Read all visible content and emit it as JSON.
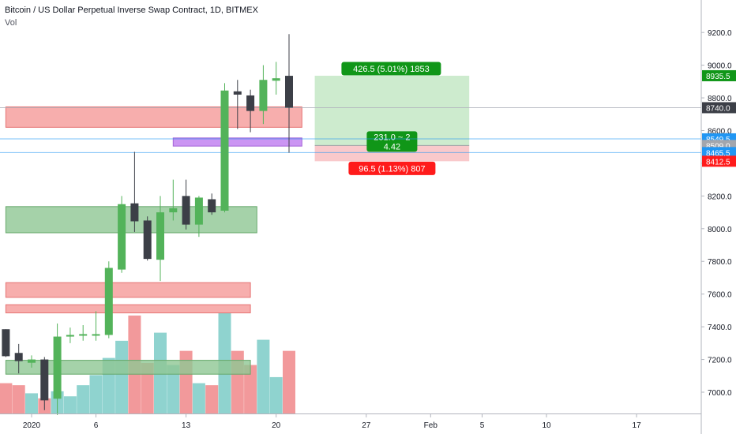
{
  "header": {
    "title": "Bitcoin / US Dollar Perpetual Inverse Swap Contract, 1D, BITMEX",
    "volume_label": "Vol"
  },
  "colors": {
    "up": "#53b35a",
    "down": "#3c3f47",
    "vol_up": "#8fd3cf",
    "vol_down": "#f2999b",
    "zone_red": "#f59a98",
    "zone_green": "#8fc793",
    "zone_purple": "#c58af2",
    "profit_fill": "#cdebce",
    "loss_fill": "#f9c9cb",
    "profit_tag": "#109618",
    "loss_tag": "#ff1b1b",
    "last_price_tag": "#3c3f47",
    "line_blue": "#2196f3"
  },
  "chart_data": {
    "type": "candlestick",
    "title": "Bitcoin / US Dollar Perpetual Inverse Swap Contract, 1D, BITMEX",
    "y_ticks": [
      7000,
      7200,
      7400,
      7600,
      7800,
      8000,
      8200,
      8400,
      8600,
      8800,
      9000,
      9200
    ],
    "y_tick_labels": [
      "7000.0",
      "7200.0",
      "7400.0",
      "7600.0",
      "7800.0",
      "8000.0",
      "8200.0",
      "8400.0",
      "8600.0",
      "8800.0",
      "9000.0",
      "9200.0"
    ],
    "x_tick_labels": [
      {
        "day": 0,
        "label": "2020"
      },
      {
        "day": 5,
        "label": "6"
      },
      {
        "day": 12,
        "label": "13"
      },
      {
        "day": 19,
        "label": "20"
      },
      {
        "day": 26,
        "label": "27"
      },
      {
        "day": 31,
        "label": "Feb"
      },
      {
        "day": 35,
        "label": "5"
      },
      {
        "day": 40,
        "label": "10"
      },
      {
        "day": 47,
        "label": "17"
      }
    ],
    "candles": [
      {
        "day": -2,
        "open": 7385,
        "high": 7385,
        "low": 7215,
        "close": 7220,
        "volume_ratio": 0.3
      },
      {
        "day": -1,
        "open": 7240,
        "high": 7295,
        "low": 7115,
        "close": 7190,
        "volume_ratio": 0.28
      },
      {
        "day": 0,
        "open": 7180,
        "high": 7225,
        "low": 7150,
        "close": 7200,
        "volume_ratio": 0.2
      },
      {
        "day": 1,
        "open": 7200,
        "high": 7215,
        "low": 6890,
        "close": 6950,
        "volume_ratio": 0.15
      },
      {
        "day": 2,
        "open": 6960,
        "high": 7420,
        "low": 6860,
        "close": 7340,
        "volume_ratio": 0.22
      },
      {
        "day": 3,
        "open": 7340,
        "high": 7395,
        "low": 7300,
        "close": 7350,
        "volume_ratio": 0.17
      },
      {
        "day": 4,
        "open": 7350,
        "high": 7410,
        "low": 7315,
        "close": 7355,
        "volume_ratio": 0.28
      },
      {
        "day": 5,
        "open": 7350,
        "high": 7495,
        "low": 7315,
        "close": 7355,
        "volume_ratio": 0.38
      },
      {
        "day": 6,
        "open": 7350,
        "high": 7800,
        "low": 7330,
        "close": 7760,
        "volume_ratio": 0.55
      },
      {
        "day": 7,
        "open": 7750,
        "high": 8200,
        "low": 7730,
        "close": 8150,
        "volume_ratio": 0.72
      },
      {
        "day": 8,
        "open": 8155,
        "high": 8470,
        "low": 7980,
        "close": 8045,
        "volume_ratio": 0.97
      },
      {
        "day": 9,
        "open": 8050,
        "high": 8075,
        "low": 7805,
        "close": 7815,
        "volume_ratio": 0.5
      },
      {
        "day": 10,
        "open": 7810,
        "high": 8200,
        "low": 7680,
        "close": 8100,
        "volume_ratio": 0.8
      },
      {
        "day": 11,
        "open": 8100,
        "high": 8300,
        "low": 8050,
        "close": 8125,
        "volume_ratio": 0.48
      },
      {
        "day": 12,
        "open": 8200,
        "high": 8300,
        "low": 7995,
        "close": 8025,
        "volume_ratio": 0.62
      },
      {
        "day": 13,
        "open": 8025,
        "high": 8200,
        "low": 7950,
        "close": 8190,
        "volume_ratio": 0.3
      },
      {
        "day": 14,
        "open": 8180,
        "high": 8215,
        "low": 8085,
        "close": 8100,
        "volume_ratio": 0.28
      },
      {
        "day": 15,
        "open": 8110,
        "high": 8890,
        "low": 8100,
        "close": 8845,
        "volume_ratio": 1.0
      },
      {
        "day": 16,
        "open": 8840,
        "high": 8910,
        "low": 8610,
        "close": 8820,
        "volume_ratio": 0.62
      },
      {
        "day": 17,
        "open": 8815,
        "high": 8850,
        "low": 8590,
        "close": 8720,
        "volume_ratio": 0.48
      },
      {
        "day": 18,
        "open": 8720,
        "high": 9000,
        "low": 8640,
        "close": 8910,
        "volume_ratio": 0.73
      },
      {
        "day": 19,
        "open": 8905,
        "high": 9020,
        "low": 8820,
        "close": 8920,
        "volume_ratio": 0.36
      },
      {
        "day": 20,
        "open": 8935,
        "high": 9190,
        "low": 8465,
        "close": 8740,
        "volume_ratio": 0.62
      }
    ],
    "zones": [
      {
        "color": "red",
        "from_day": -2,
        "to_day": 21,
        "low": 8620,
        "high": 8745
      },
      {
        "color": "purple",
        "from_day": 11,
        "to_day": 21,
        "low": 8505,
        "high": 8555
      },
      {
        "color": "green",
        "from_day": -2,
        "to_day": 17.5,
        "low": 7975,
        "high": 8135
      },
      {
        "color": "red",
        "from_day": -2,
        "to_day": 17,
        "low": 7580,
        "high": 7670
      },
      {
        "color": "red",
        "from_day": -2,
        "to_day": 17,
        "low": 7485,
        "high": 7535
      },
      {
        "color": "green",
        "from_day": -2,
        "to_day": 17,
        "low": 7110,
        "high": 7195
      }
    ],
    "position": {
      "entry": 8509.0,
      "target": 8935.5,
      "stop": 8412.5,
      "from_day": 22,
      "to_day": 34,
      "target_label": "426.5 (5.01%) 1853",
      "ratio_label_1": "231.0 ~ 2",
      "ratio_label_2": "4.42",
      "stop_label": "96.5 (1.13%) 807"
    },
    "horizontal_lines": [
      {
        "price": 8740.0,
        "color": "gray"
      },
      {
        "price": 8549.5,
        "color": "blue"
      },
      {
        "price": 8465.5,
        "color": "blue"
      }
    ],
    "price_tags": [
      {
        "price": 8935.5,
        "label": "8935.5",
        "color": "profit"
      },
      {
        "price": 8740.0,
        "label": "8740.0",
        "color": "last"
      },
      {
        "price": 8549.5,
        "label": "8549.5",
        "color": "blue"
      },
      {
        "price": 8509.0,
        "label": "8509.0",
        "color": "gray"
      },
      {
        "price": 8465.5,
        "label": "8465.5",
        "color": "blue"
      },
      {
        "price": 8412.5,
        "label": "8412.5",
        "color": "loss"
      }
    ]
  }
}
